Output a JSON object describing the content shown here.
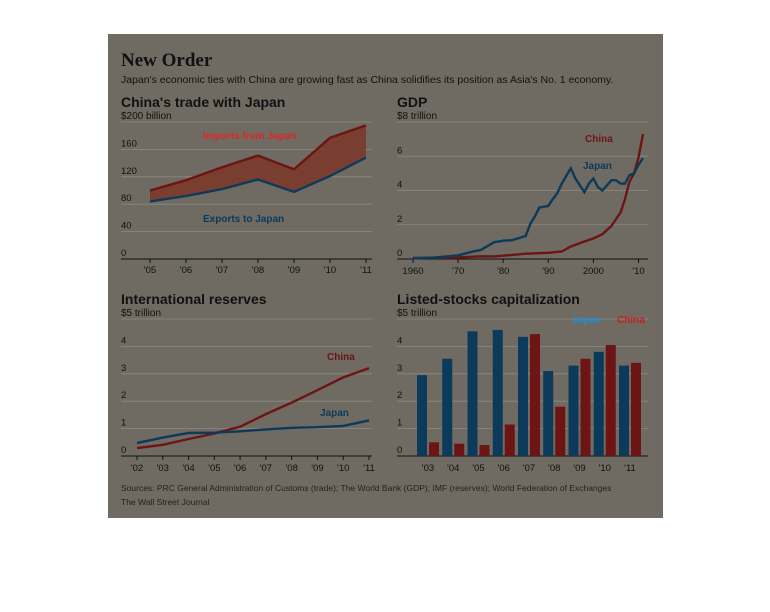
{
  "header": {
    "title": "New Order",
    "subtitle": "Japan's economic ties with China are growing fast as China solidifies its position as Asia's No. 1 economy."
  },
  "footer": {
    "sources": "Sources: PRC General Administration of Customs (trade); The World Bank (GDP); IMF (reserves); World Federation of Exchanges",
    "publisher": "The Wall Street Journal"
  },
  "colors": {
    "background": "#6f6b63",
    "china": "#6d1414",
    "japan": "#0c3a5a",
    "imports_label": "#e02626",
    "japan_label": "#0e4f80"
  },
  "chart_data": [
    {
      "type": "area",
      "title": "China's trade with Japan",
      "unit_label": "$200 billion",
      "x": [
        "'05",
        "'06",
        "'07",
        "'08",
        "'09",
        "'10",
        "'11"
      ],
      "yticks": [
        "0",
        "40",
        "80",
        "120",
        "160",
        "$200 billion"
      ],
      "ylim": [
        0,
        200
      ],
      "series": [
        {
          "name": "Imports from Japan",
          "values": [
            100,
            115,
            134,
            151,
            131,
            177,
            195
          ]
        },
        {
          "name": "Exports to Japan",
          "values": [
            84,
            92,
            102,
            116,
            98,
            121,
            148
          ]
        }
      ],
      "grid": true
    },
    {
      "type": "line",
      "title": "GDP",
      "unit_label": "$8 trillion",
      "xticks": [
        "1960",
        "'70",
        "'80",
        "'90",
        "2000",
        "'10"
      ],
      "yticks": [
        "0",
        "2",
        "4",
        "6",
        "$8 trillion"
      ],
      "ylim": [
        0,
        8
      ],
      "xlim": [
        1960,
        2011
      ],
      "series": [
        {
          "name": "China",
          "x": [
            1960,
            1965,
            1970,
            1975,
            1978,
            1980,
            1985,
            1990,
            1993,
            1995,
            1998,
            2000,
            2002,
            2004,
            2006,
            2007,
            2008,
            2009,
            2010,
            2011
          ],
          "values": [
            0.06,
            0.07,
            0.09,
            0.16,
            0.15,
            0.19,
            0.31,
            0.36,
            0.44,
            0.73,
            1.02,
            1.2,
            1.45,
            1.93,
            2.71,
            3.49,
            4.52,
            4.99,
            5.93,
            7.3
          ]
        },
        {
          "name": "Japan",
          "x": [
            1960,
            1965,
            1970,
            1973,
            1975,
            1978,
            1980,
            1982,
            1984,
            1985,
            1986,
            1987,
            1988,
            1990,
            1991,
            1992,
            1993,
            1994,
            1995,
            1996,
            1997,
            1998,
            1999,
            2000,
            2001,
            2002,
            2003,
            2004,
            2005,
            2006,
            2007,
            2008,
            2009,
            2010,
            2011
          ],
          "values": [
            0.04,
            0.09,
            0.21,
            0.42,
            0.52,
            0.98,
            1.07,
            1.1,
            1.26,
            1.35,
            2.05,
            2.48,
            3.0,
            3.1,
            3.5,
            3.85,
            4.4,
            4.85,
            5.3,
            4.7,
            4.3,
            3.9,
            4.4,
            4.7,
            4.2,
            4.0,
            4.3,
            4.6,
            4.6,
            4.4,
            4.4,
            4.9,
            5.0,
            5.5,
            5.9
          ]
        }
      ],
      "grid": true
    },
    {
      "type": "line",
      "title": "International reserves",
      "unit_label": "$5 trillion",
      "x": [
        "'02",
        "'03",
        "'04",
        "'05",
        "'06",
        "'07",
        "'08",
        "'09",
        "'10",
        "'11"
      ],
      "yticks": [
        "0",
        "1",
        "2",
        "3",
        "4",
        "$5 trillion"
      ],
      "ylim": [
        0,
        5
      ],
      "series": [
        {
          "name": "China",
          "values": [
            0.29,
            0.41,
            0.62,
            0.82,
            1.07,
            1.53,
            1.95,
            2.4,
            2.87,
            3.2
          ]
        },
        {
          "name": "Japan",
          "values": [
            0.47,
            0.67,
            0.84,
            0.85,
            0.9,
            0.97,
            1.03,
            1.05,
            1.1,
            1.3
          ]
        }
      ],
      "grid": true
    },
    {
      "type": "bar",
      "title": "Listed-stocks capitalization",
      "unit_label": "$5 trillion",
      "categories": [
        "'03",
        "'04",
        "'05",
        "'06",
        "'07",
        "'08",
        "'09",
        "'10",
        "'11"
      ],
      "yticks": [
        "0",
        "1",
        "2",
        "3",
        "4",
        "$5 trillion"
      ],
      "ylim": [
        0,
        5
      ],
      "series": [
        {
          "name": "Japan",
          "values": [
            2.95,
            3.55,
            4.55,
            4.6,
            4.35,
            3.1,
            3.3,
            3.8,
            3.3
          ]
        },
        {
          "name": "China",
          "values": [
            0.5,
            0.45,
            0.4,
            1.15,
            4.45,
            1.8,
            3.55,
            4.05,
            3.4
          ]
        }
      ],
      "grid": true
    }
  ]
}
